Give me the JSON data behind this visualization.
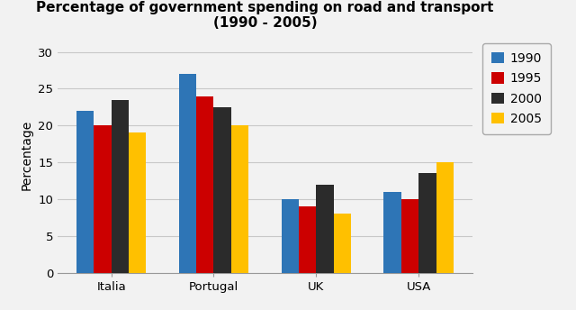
{
  "title": "Percentage of government spending on road and transport\n(1990 - 2005)",
  "categories": [
    "Italia",
    "Portugal",
    "UK",
    "USA"
  ],
  "years": [
    "1990",
    "1995",
    "2000",
    "2005"
  ],
  "values": {
    "1990": [
      22,
      27,
      10,
      11
    ],
    "1995": [
      20,
      24,
      9,
      10
    ],
    "2000": [
      23.5,
      22.5,
      12,
      13.5
    ],
    "2005": [
      19,
      20,
      8,
      15
    ]
  },
  "colors": {
    "1990": "#2e75b6",
    "1995": "#cc0000",
    "2000": "#2b2b2b",
    "2005": "#ffc000"
  },
  "ylabel": "Percentage",
  "ylim": [
    0,
    32
  ],
  "yticks": [
    0,
    5,
    10,
    15,
    20,
    25,
    30
  ],
  "background_color": "#f2f2f2",
  "plot_bg_color": "#f2f2f2",
  "grid_color": "#c8c8c8",
  "bar_width": 0.17,
  "title_fontsize": 11,
  "axis_fontsize": 10,
  "tick_fontsize": 9.5,
  "legend_fontsize": 10
}
